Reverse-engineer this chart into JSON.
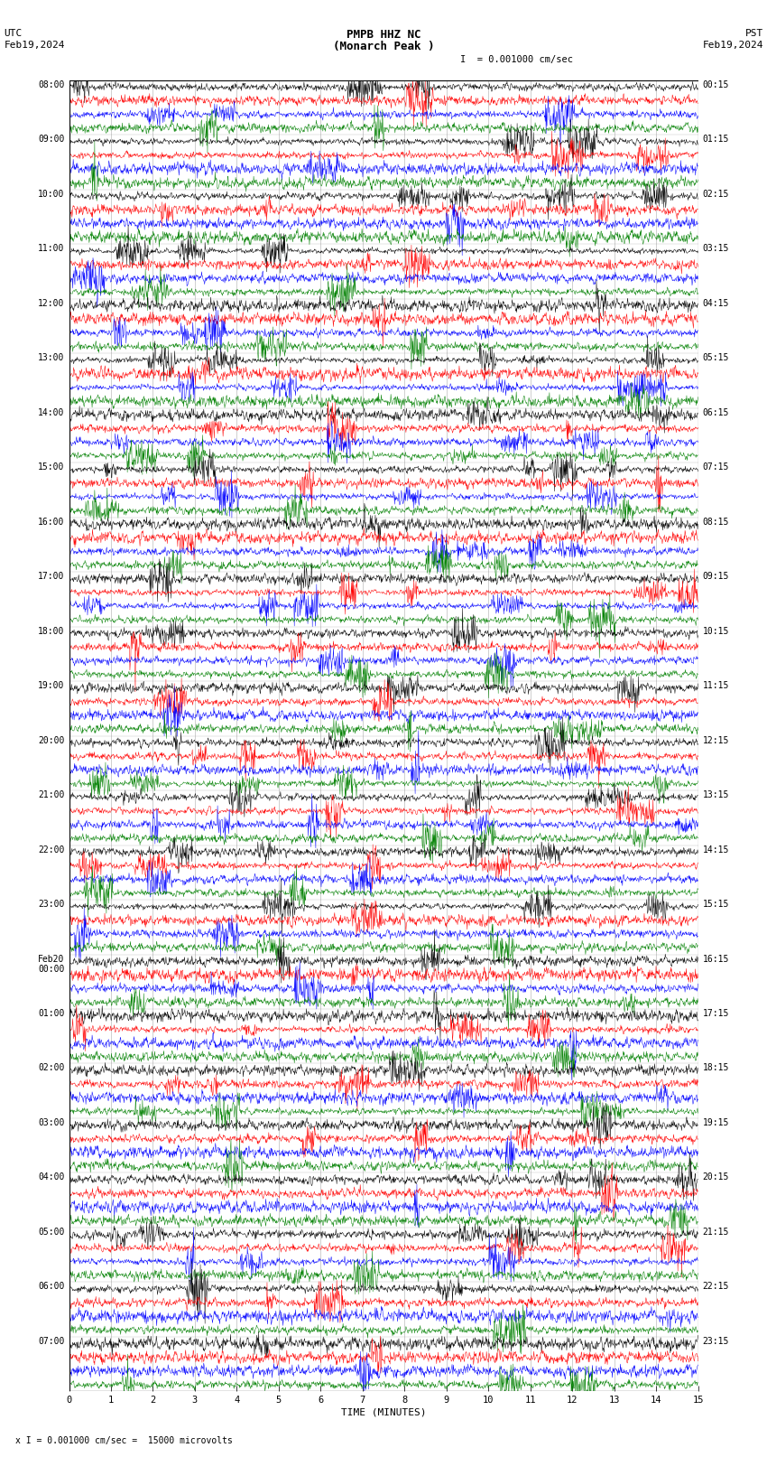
{
  "title_line1": "PMPB HHZ NC",
  "title_line2": "(Monarch Peak )",
  "scale_label": "= 0.001000 cm/sec",
  "bottom_label": "x I = 0.001000 cm/sec =  15000 microvolts",
  "left_date": "UTC",
  "left_date2": "Feb19,2024",
  "right_date": "PST",
  "right_date2": "Feb19,2024",
  "xlabel": "TIME (MINUTES)",
  "bg_color": "#ffffff",
  "trace_colors": [
    "black",
    "red",
    "blue",
    "green"
  ],
  "minutes_per_row": 15,
  "figwidth": 8.5,
  "figheight": 16.13,
  "grid_color": "#888888",
  "left_labels": [
    "08:00",
    "09:00",
    "10:00",
    "11:00",
    "12:00",
    "13:00",
    "14:00",
    "15:00",
    "16:00",
    "17:00",
    "18:00",
    "19:00",
    "20:00",
    "21:00",
    "22:00",
    "23:00",
    "Feb20\n00:00",
    "01:00",
    "02:00",
    "03:00",
    "04:00",
    "05:00",
    "06:00",
    "07:00"
  ],
  "right_labels": [
    "00:15",
    "01:15",
    "02:15",
    "03:15",
    "04:15",
    "05:15",
    "06:15",
    "07:15",
    "08:15",
    "09:15",
    "10:15",
    "11:15",
    "12:15",
    "13:15",
    "14:15",
    "15:15",
    "16:15",
    "17:15",
    "18:15",
    "19:15",
    "20:15",
    "21:15",
    "22:15",
    "23:15"
  ]
}
